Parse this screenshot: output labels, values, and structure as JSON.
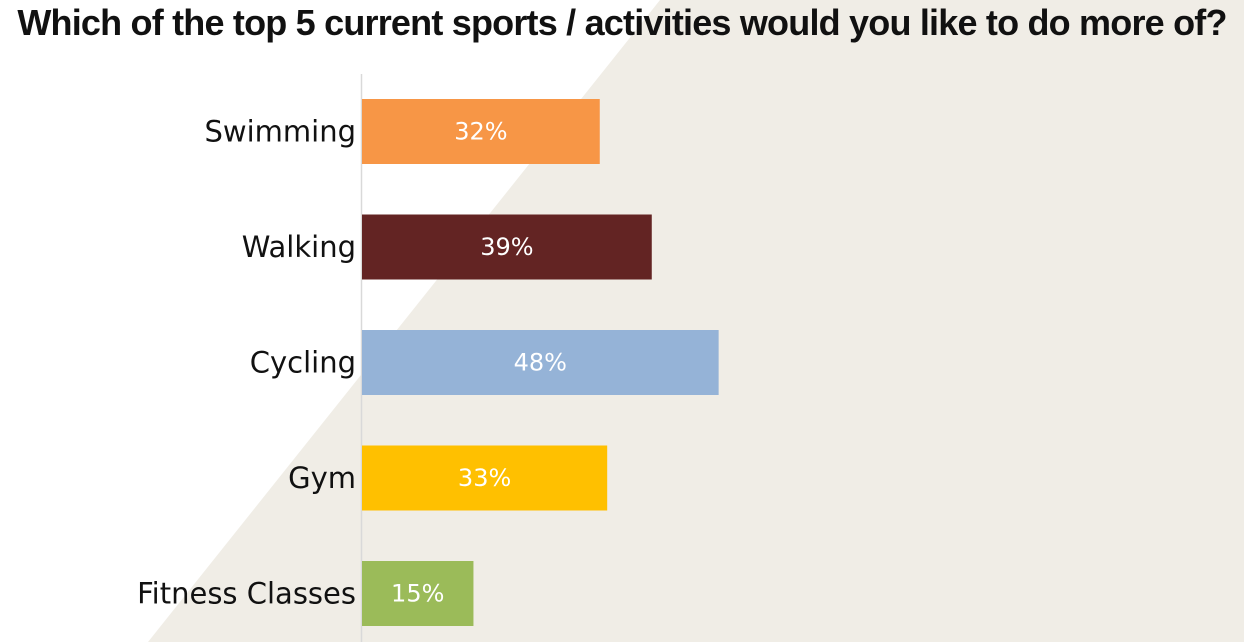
{
  "chart_data": {
    "type": "bar",
    "orientation": "horizontal",
    "title": "Which of the top 5 current sports / activities would you like to do more of?",
    "categories": [
      "Swimming",
      "Walking",
      "Cycling",
      "Gym",
      "Fitness Classes"
    ],
    "values": [
      32,
      39,
      48,
      33,
      15
    ],
    "value_labels": [
      "32%",
      "39%",
      "48%",
      "33%",
      "15%"
    ],
    "unit": "%",
    "bar_colors": [
      "#F79646",
      "#632423",
      "#95B3D7",
      "#FFC000",
      "#9BBB59"
    ],
    "xlim": [
      0,
      100
    ],
    "grid": false,
    "legend": "none"
  },
  "colors": {
    "background_band": "#F0EDE6",
    "axis_line": "#D9D9D9"
  }
}
